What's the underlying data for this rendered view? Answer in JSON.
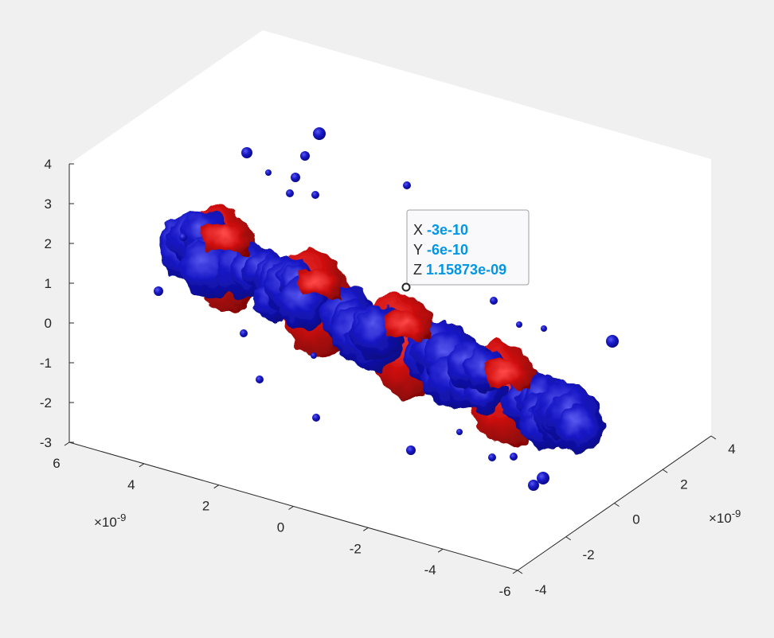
{
  "colors": {
    "figure_bg": "#f0f0f0",
    "axes_bg": "#ffffff",
    "axis_line": "#262626",
    "surface_negative": "#1414b4",
    "surface_positive": "#d21414",
    "datatip_value": "#0096e6"
  },
  "chart_data": {
    "type": "isosurface-3d",
    "title": "",
    "view": "3d-default",
    "grid": false,
    "xlim": [
      -6e-09,
      6e-09
    ],
    "ylim": [
      -4e-09,
      4e-09
    ],
    "zlim": [
      -3,
      4
    ],
    "x_ticks": [
      "6",
      "4",
      "2",
      "0",
      "-2",
      "-4",
      "-6"
    ],
    "y_ticks": [
      "-4",
      "-2",
      "0",
      "2",
      "4"
    ],
    "z_ticks": [
      "4",
      "3",
      "2",
      "1",
      "0",
      "-1",
      "-2",
      "-3"
    ],
    "x_exponent": "×10",
    "x_exponent_power": "-9",
    "y_exponent": "×10",
    "y_exponent_power": "-9",
    "series": [
      {
        "name": "",
        "color": "#1414b4"
      },
      {
        "name": "",
        "color": "#d21414"
      }
    ],
    "datatip": {
      "x_key": "X",
      "x_value": "-3e-10",
      "y_key": "Y",
      "y_value": "-6e-10",
      "z_key": "Z",
      "z_value": "1.15873e-09"
    }
  }
}
